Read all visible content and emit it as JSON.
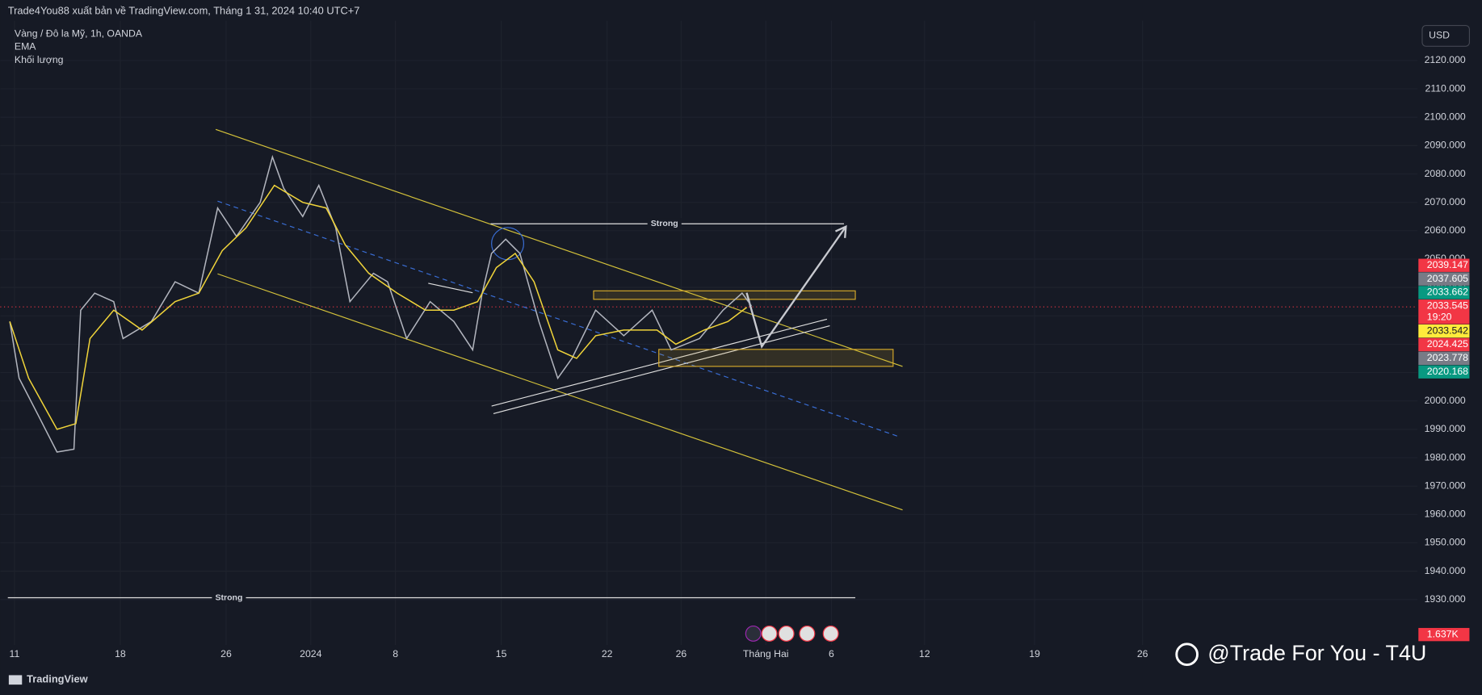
{
  "header": "Trade4You88 xuất bản về TradingView.com, Tháng 1 31, 2024 10:40 UTC+7",
  "legend": [
    "Vàng / Đô la Mỹ, 1h, OANDA",
    "EMA",
    "Khối lượng"
  ],
  "currency": "USD",
  "chart_data": {
    "type": "line",
    "x": null,
    "series": [
      {
        "name": "Vàng / Đô la Mỹ, 1h, OANDA",
        "color": "#b2b5be",
        "x": [
          -0.22,
          0.22,
          1.12,
          2.01,
          2.81,
          3.13,
          3.79,
          4.69,
          5.13,
          6.47,
          7.59,
          8.71,
          9.6,
          10.49,
          11.61,
          12.19,
          12.72,
          13.62,
          14.38,
          15.18,
          15.85,
          16.96,
          17.63,
          18.53,
          19.64,
          20.76,
          21.65,
          22.1,
          22.54,
          23.21,
          23.88,
          24.78,
          25.67,
          26.34,
          27.46,
          28.79,
          30.13,
          31.03,
          32.37,
          33.48,
          34.38,
          34.82
        ],
        "values": [
          2028,
          2008,
          1995,
          1982,
          1983,
          2032,
          2038,
          2035,
          2022,
          2028,
          2042,
          2038,
          2068,
          2058,
          2070,
          2086,
          2075,
          2065,
          2076,
          2061,
          2035,
          2045,
          2042,
          2022,
          2035,
          2028,
          2018,
          2038,
          2052,
          2057,
          2052,
          2028,
          2008,
          2015,
          2032,
          2023,
          2032,
          2018,
          2022,
          2032,
          2038,
          2033.5
        ]
      },
      {
        "name": "EMA",
        "color": "#f0d43a",
        "x": [
          -0.22,
          0.67,
          2.01,
          2.9,
          3.57,
          4.69,
          6.03,
          7.59,
          8.71,
          9.82,
          10.94,
          12.28,
          13.62,
          14.73,
          15.63,
          16.74,
          18.08,
          19.42,
          20.76,
          21.88,
          22.77,
          23.66,
          24.55,
          25.67,
          26.56,
          27.46,
          28.79,
          30.36,
          31.25,
          32.59,
          33.71,
          34.6
        ],
        "values": [
          2028,
          2008,
          1990,
          1992,
          2022,
          2032,
          2025,
          2035,
          2038,
          2053,
          2061,
          2076,
          2070,
          2068,
          2055,
          2045,
          2038,
          2032,
          2032,
          2035,
          2047,
          2052,
          2042,
          2018,
          2015,
          2023,
          2025,
          2025,
          2020,
          2025,
          2028,
          2033
        ]
      }
    ],
    "xlim": [
      -0.67,
      66.29
    ],
    "xticks": [
      {
        "value": 0,
        "label": "11"
      },
      {
        "value": 5,
        "label": "18"
      },
      {
        "value": 10,
        "label": "26"
      },
      {
        "value": 14,
        "label": "2024"
      },
      {
        "value": 18,
        "label": "8"
      },
      {
        "value": 23,
        "label": "15"
      },
      {
        "value": 28,
        "label": "22"
      },
      {
        "value": 31.5,
        "label": "26"
      },
      {
        "value": 35.5,
        "label": "Tháng Hai"
      },
      {
        "value": 38.6,
        "label": "6"
      },
      {
        "value": 43,
        "label": "12"
      },
      {
        "value": 48.2,
        "label": "19"
      },
      {
        "value": 53.3,
        "label": "26"
      }
    ],
    "ylim": [
      1914,
      2134
    ],
    "yticks": [
      {
        "value": 1930,
        "label": "1930.000"
      },
      {
        "value": 1940,
        "label": "1940.000"
      },
      {
        "value": 1950,
        "label": "1950.000"
      },
      {
        "value": 1960,
        "label": "1960.000"
      },
      {
        "value": 1970,
        "label": "1970.000"
      },
      {
        "value": 1980,
        "label": "1980.000"
      },
      {
        "value": 1990,
        "label": "1990.000"
      },
      {
        "value": 2000,
        "label": "2000.000"
      },
      {
        "value": 2010,
        "label": "2010.000"
      },
      {
        "value": 2020,
        "label": "2020.000"
      },
      {
        "value": 2030,
        "label": "2030.000"
      },
      {
        "value": 2040,
        "label": "2040.000"
      },
      {
        "value": 2050,
        "label": "2050.000"
      },
      {
        "value": 2060,
        "label": "2060.000"
      },
      {
        "value": 2070,
        "label": "2070.000"
      },
      {
        "value": 2080,
        "label": "2080.000"
      },
      {
        "value": 2090,
        "label": "2090.000"
      },
      {
        "value": 2100,
        "label": "2100.000"
      },
      {
        "value": 2110,
        "label": "2110.000"
      },
      {
        "value": 2120,
        "label": "2120.000"
      }
    ],
    "grid": true,
    "price_labels": [
      {
        "value": 2039.147,
        "label": "2039.147",
        "color": "#f23645"
      },
      {
        "value": 2037.605,
        "label": "2037.605",
        "color": "#787b86"
      },
      {
        "value": 2033.662,
        "label": "2033.662",
        "color": "#089981"
      },
      {
        "value": 2033.545,
        "label": "2033.545",
        "color": "#f23645"
      },
      {
        "value": 2033.542,
        "label": "2033.542",
        "color": "#ffeb3b"
      },
      {
        "value": 2024.425,
        "label": "2024.425",
        "color": "#f23645"
      },
      {
        "value": 2023.778,
        "label": "2023.778",
        "color": "#787b86"
      },
      {
        "value": 2020.168,
        "label": "2020.168",
        "color": "#089981"
      }
    ],
    "countdown": "19:20",
    "volume_label": "1.637K"
  },
  "drawings": [
    "Strong",
    "Strong"
  ],
  "footer": "TradingView",
  "watermark": "@Trade For You - T4U"
}
